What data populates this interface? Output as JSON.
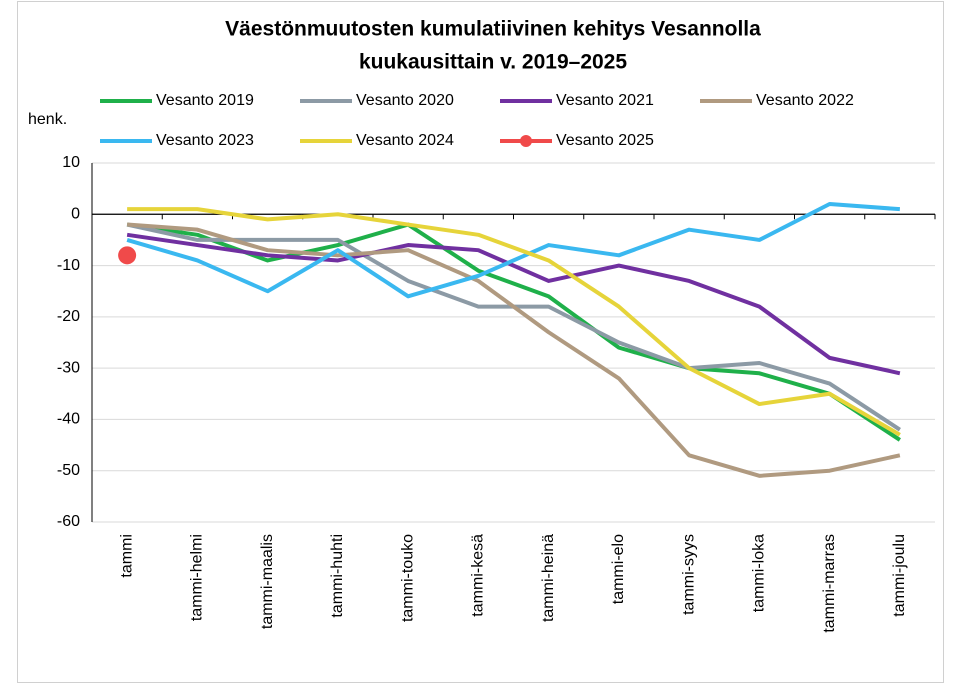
{
  "chart_data": {
    "type": "line",
    "title": [
      "Väestönmuutosten kumulatiivinen kehitys Vesannolla",
      "kuukausittain v. 2019–2025"
    ],
    "y_label": "henk.",
    "categories": [
      "tammi",
      "tammi-helmi",
      "tammi-maalis",
      "tammi-huhti",
      "tammi-touko",
      "tammi-kesä",
      "tammi-heinä",
      "tammi-elo",
      "tammi-syys",
      "tammi-loka",
      "tammi-marras",
      "tammi-joulu"
    ],
    "series": [
      {
        "name": "Vesanto 2019",
        "color": "#1fb04a",
        "values": [
          -2,
          -4,
          -9,
          -6,
          -2,
          -11,
          -16,
          -26,
          -30,
          -31,
          -35,
          -44
        ]
      },
      {
        "name": "Vesanto 2020",
        "color": "#8c9aa5",
        "values": [
          -2,
          -5,
          -5,
          -5,
          -13,
          -18,
          -18,
          -25,
          -30,
          -29,
          -33,
          -42
        ]
      },
      {
        "name": "Vesanto 2021",
        "color": "#7030a0",
        "values": [
          -4,
          -6,
          -8,
          -9,
          -6,
          -7,
          -13,
          -10,
          -13,
          -18,
          -28,
          -31
        ]
      },
      {
        "name": "Vesanto 2022",
        "color": "#b09a80",
        "values": [
          -2,
          -3,
          -7,
          -8,
          -7,
          -13,
          -23,
          -32,
          -47,
          -51,
          -50,
          -47
        ]
      },
      {
        "name": "Vesanto 2023",
        "color": "#3ab8f0",
        "values": [
          -5,
          -9,
          -15,
          -7,
          -16,
          -12,
          -6,
          -8,
          -3,
          -5,
          2,
          1
        ]
      },
      {
        "name": "Vesanto 2024",
        "color": "#e6d43a",
        "values": [
          1,
          1,
          -1,
          0,
          -2,
          -4,
          -9,
          -18,
          -30,
          -37,
          -35,
          -43
        ]
      },
      {
        "name": "Vesanto 2025",
        "color": "#f04a4a",
        "marker": true,
        "values": [
          -8,
          null,
          null,
          null,
          null,
          null,
          null,
          null,
          null,
          null,
          null,
          null
        ]
      }
    ],
    "ylim": [
      -60,
      10
    ],
    "yticks": [
      -60,
      -50,
      -40,
      -30,
      -20,
      -10,
      0,
      10
    ],
    "grid": true
  }
}
